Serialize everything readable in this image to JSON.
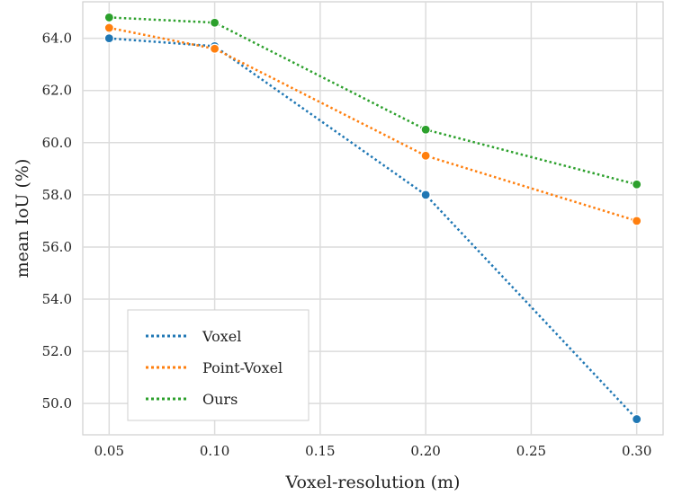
{
  "chart_data": {
    "type": "line",
    "title": "",
    "xlabel": "Voxel-resolution (m)",
    "ylabel": "mean IoU (%)",
    "xlim": [
      0.0375,
      0.3125
    ],
    "ylim": [
      48.8,
      65.4
    ],
    "xticks": [
      "0.05",
      "0.10",
      "0.15",
      "0.20",
      "0.25",
      "0.30"
    ],
    "yticks": [
      "50.0",
      "52.0",
      "54.0",
      "56.0",
      "58.0",
      "60.0",
      "62.0",
      "64.0"
    ],
    "grid": true,
    "legend_position": "lower-left",
    "x": [
      0.05,
      0.1,
      0.2,
      0.3
    ],
    "series": [
      {
        "name": "Voxel",
        "color": "#1f77b4",
        "values": [
          64.0,
          63.7,
          58.0,
          49.4
        ]
      },
      {
        "name": "Point-Voxel",
        "color": "#ff7f0e",
        "values": [
          64.4,
          63.6,
          59.5,
          57.0
        ]
      },
      {
        "name": "Ours",
        "color": "#2ca02c",
        "values": [
          64.8,
          64.6,
          60.5,
          58.4
        ]
      }
    ]
  }
}
